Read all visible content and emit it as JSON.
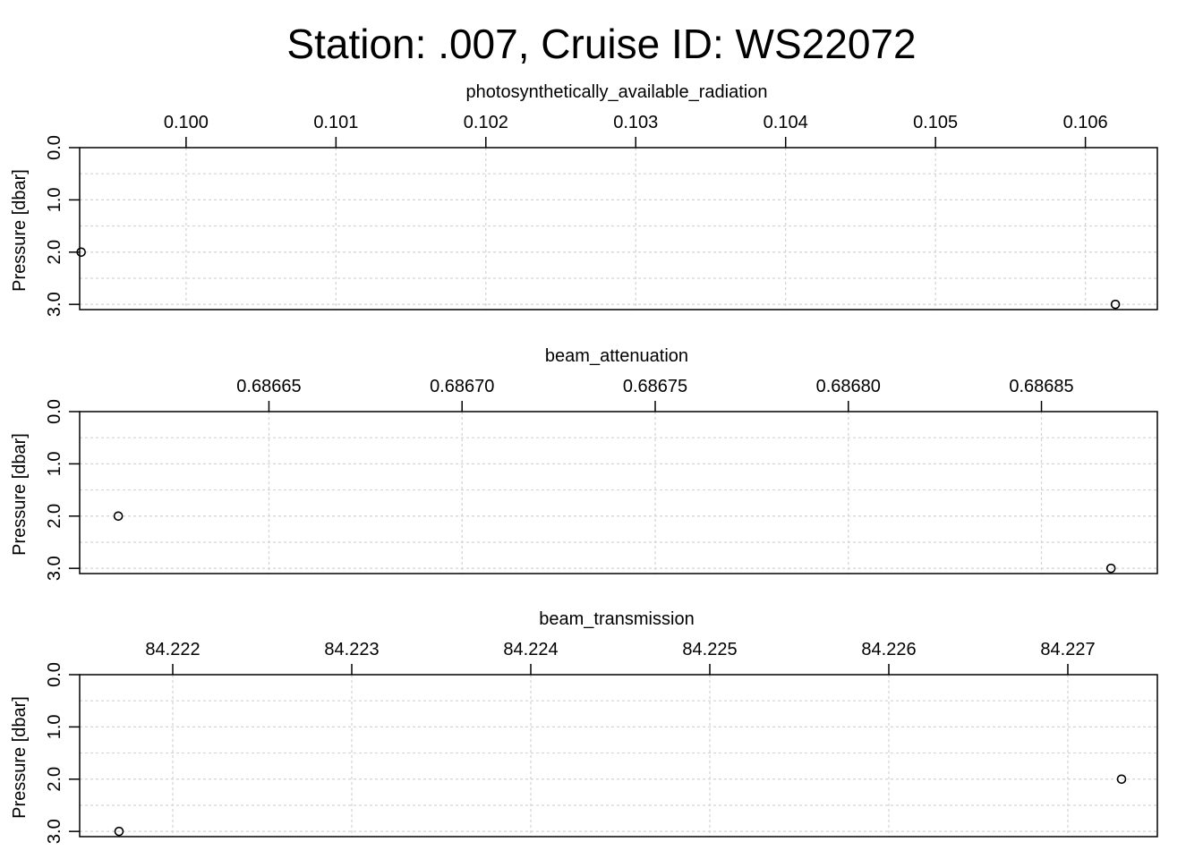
{
  "title": "Station: .007, Cruise ID: WS22072",
  "chart_data": [
    {
      "type": "scatter",
      "xlabel": "photosynthetically_available_radiation",
      "ylabel": "Pressure [dbar]",
      "x_ticks": [
        0.1,
        0.101,
        0.102,
        0.103,
        0.104,
        0.105,
        0.106
      ],
      "x_tick_labels": [
        "0.100",
        "0.101",
        "0.102",
        "0.103",
        "0.104",
        "0.105",
        "0.106"
      ],
      "xlim": [
        0.09929,
        0.10648
      ],
      "y_ticks": [
        0,
        1,
        2,
        3
      ],
      "y_tick_labels": [
        "0.0",
        "1.0",
        "2.0",
        "3.0"
      ],
      "ylim": [
        0,
        3.1
      ],
      "y_reversed": true,
      "x_axis_position": "top",
      "grid": true,
      "points": [
        {
          "x": 0.0993,
          "y": 2
        },
        {
          "x": 0.1062,
          "y": 3
        }
      ]
    },
    {
      "type": "scatter",
      "xlabel": "beam_attenuation",
      "ylabel": "Pressure [dbar]",
      "x_ticks": [
        0.68665,
        0.6867,
        0.68675,
        0.6868,
        0.68685
      ],
      "x_tick_labels": [
        "0.68665",
        "0.68670",
        "0.68675",
        "0.68680",
        "0.68685"
      ],
      "xlim": [
        0.686601,
        0.68688
      ],
      "y_ticks": [
        0,
        1,
        2,
        3
      ],
      "y_tick_labels": [
        "0.0",
        "1.0",
        "2.0",
        "3.0"
      ],
      "ylim": [
        0,
        3.1
      ],
      "y_reversed": true,
      "x_axis_position": "top",
      "grid": true,
      "points": [
        {
          "x": 0.686611,
          "y": 2
        },
        {
          "x": 0.686868,
          "y": 3
        }
      ]
    },
    {
      "type": "scatter",
      "xlabel": "beam_transmission",
      "ylabel": "Pressure [dbar]",
      "x_ticks": [
        84.222,
        84.223,
        84.224,
        84.225,
        84.226,
        84.227
      ],
      "x_tick_labels": [
        "84.222",
        "84.223",
        "84.224",
        "84.225",
        "84.226",
        "84.227"
      ],
      "xlim": [
        84.22148,
        84.2275
      ],
      "y_ticks": [
        0,
        1,
        2,
        3
      ],
      "y_tick_labels": [
        "0.0",
        "1.0",
        "2.0",
        "3.0"
      ],
      "ylim": [
        0,
        3.1
      ],
      "y_reversed": true,
      "x_axis_position": "top",
      "grid": true,
      "points": [
        {
          "x": 84.2217,
          "y": 3
        },
        {
          "x": 84.2273,
          "y": 2
        }
      ]
    }
  ]
}
